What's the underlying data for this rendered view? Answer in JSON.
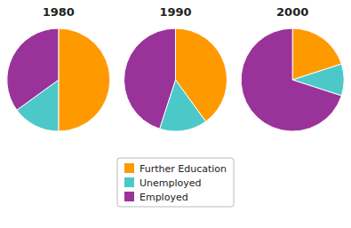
{
  "chart_data": [
    {
      "type": "pie",
      "title": "1980",
      "categories": [
        "Further Education",
        "Unemployed",
        "Employed"
      ],
      "values": [
        50,
        15,
        35
      ],
      "colors": [
        "#ff9900",
        "#4dc8c8",
        "#993399"
      ],
      "legend": "bottom"
    },
    {
      "type": "pie",
      "title": "1990",
      "categories": [
        "Further Education",
        "Unemployed",
        "Employed"
      ],
      "values": [
        40,
        15,
        45
      ],
      "colors": [
        "#ff9900",
        "#4dc8c8",
        "#993399"
      ]
    },
    {
      "type": "pie",
      "title": "2000",
      "categories": [
        "Further Education",
        "Unemployed",
        "Employed"
      ],
      "values": [
        20,
        10,
        70
      ],
      "colors": [
        "#ff9900",
        "#4dc8c8",
        "#993399"
      ]
    }
  ]
}
